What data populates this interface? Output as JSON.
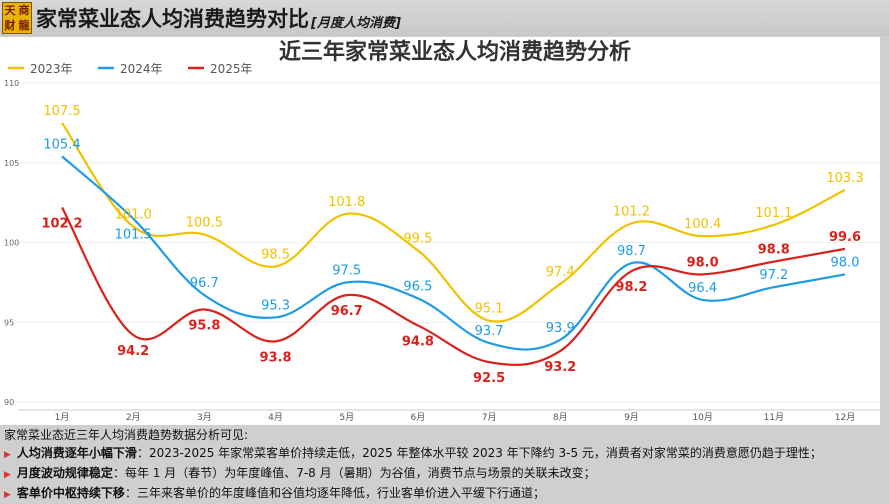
{
  "header": {
    "logo": [
      "天",
      "商",
      "财",
      "龍"
    ],
    "title": "家常菜业态人均消费趋势对比",
    "subtitle": "[月度人均消费]"
  },
  "chart_data": {
    "type": "line",
    "title": "近三年家常菜业态人均消费趋势分析",
    "categories": [
      "1月",
      "2月",
      "3月",
      "4月",
      "5月",
      "6月",
      "7月",
      "8月",
      "9月",
      "10月",
      "11月",
      "12月"
    ],
    "ylim": [
      90,
      110
    ],
    "yticks": [
      90,
      95,
      100,
      105,
      110
    ],
    "grid": true,
    "legend": "top-left",
    "series": [
      {
        "name": "2023年",
        "color": "#f2c200",
        "values": [
          107.5,
          101.0,
          100.5,
          98.5,
          101.8,
          99.5,
          95.1,
          97.4,
          101.2,
          100.4,
          101.1,
          103.3
        ]
      },
      {
        "name": "2024年",
        "color": "#1e9be6",
        "values": [
          105.4,
          101.5,
          96.7,
          95.3,
          97.5,
          96.5,
          93.7,
          93.9,
          98.7,
          96.4,
          97.2,
          98.0
        ]
      },
      {
        "name": "2025年",
        "color": "#d9221c",
        "values": [
          102.2,
          94.2,
          95.8,
          93.8,
          96.7,
          94.8,
          92.5,
          93.2,
          98.2,
          98.0,
          98.8,
          99.6
        ]
      }
    ]
  },
  "notes": {
    "intro": "家常菜业态近三年人均消费趋势数据分析可见:",
    "items": [
      {
        "head": "人均消费逐年小幅下滑",
        "body": "：2023-2025 年家常菜客单价持续走低，2025 年整体水平较 2023 年下降约 3-5 元，消费者对家常菜的消费意愿仍趋于理性；"
      },
      {
        "head": "月度波动规律稳定",
        "body": "：每年 1 月（春节）为年度峰值、7-8 月（暑期）为谷值，消费节点与场景的关联未改变；"
      },
      {
        "head": "客单价中枢持续下移",
        "body": "：三年来客单价的年度峰值和谷值均逐年降低，行业客单价进入平缓下行通道；"
      }
    ]
  }
}
